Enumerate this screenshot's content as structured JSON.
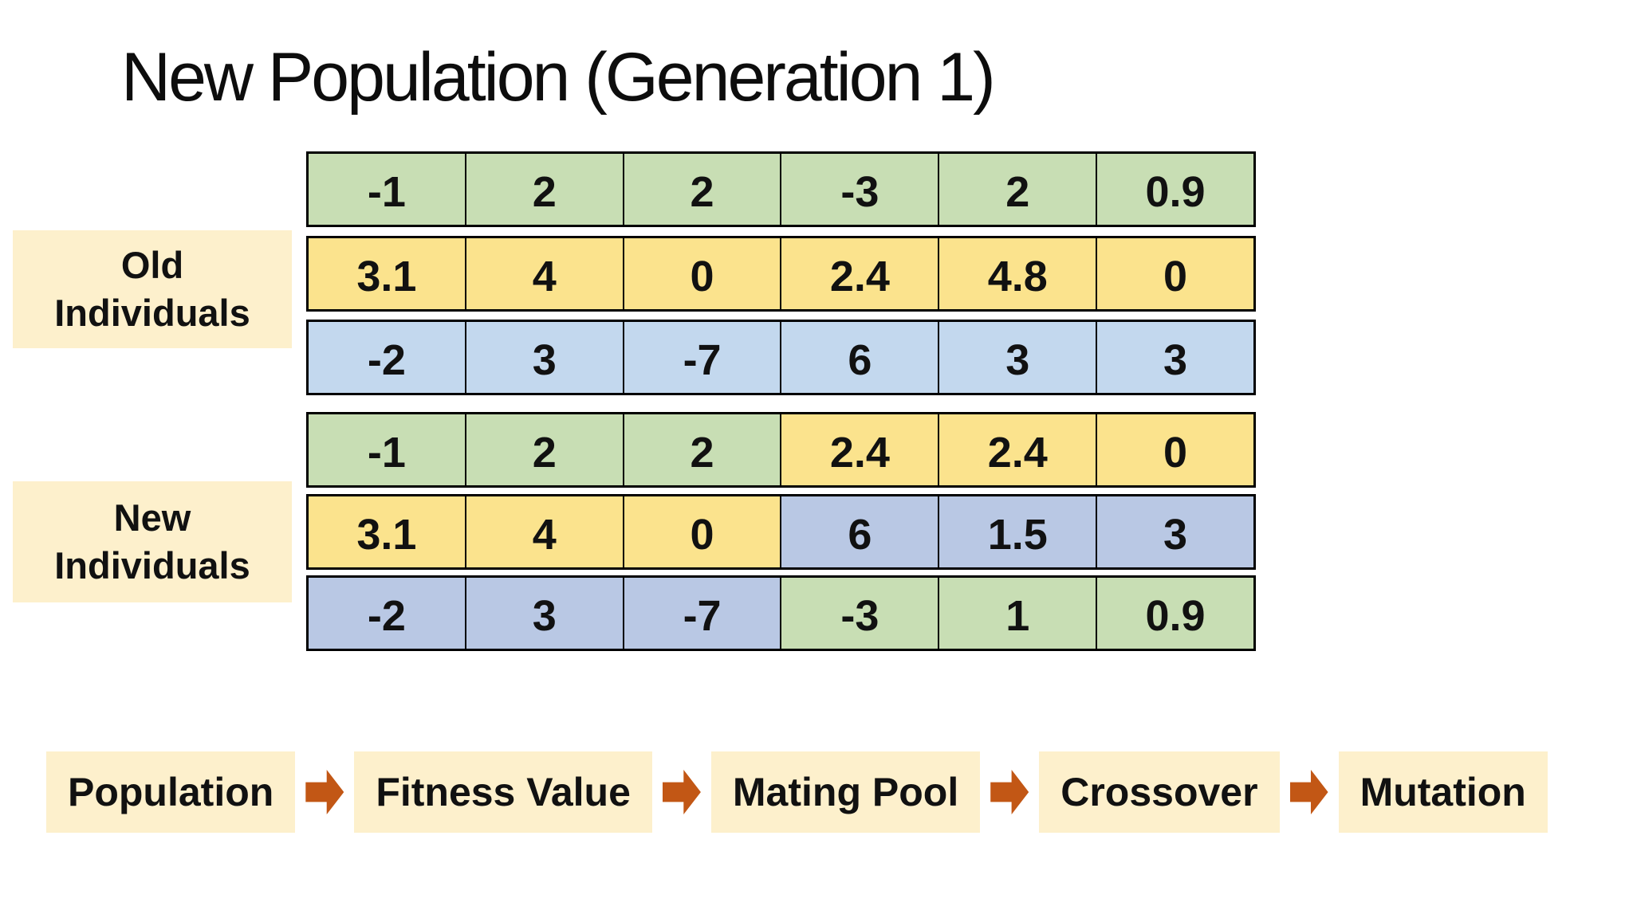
{
  "title": "New Population (Generation 1)",
  "old_section": {
    "label_lines": [
      "Old",
      "Individuals"
    ]
  },
  "new_section": {
    "label_lines": [
      "New",
      "Individuals"
    ]
  },
  "tables": {
    "old": {
      "rows": [
        {
          "cells": [
            {
              "value": "-1",
              "color": "green"
            },
            {
              "value": "2",
              "color": "green"
            },
            {
              "value": "2",
              "color": "green"
            },
            {
              "value": "-3",
              "color": "green"
            },
            {
              "value": "2",
              "color": "green"
            },
            {
              "value": "0.9",
              "color": "green"
            }
          ]
        },
        {
          "cells": [
            {
              "value": "3.1",
              "color": "yellow"
            },
            {
              "value": "4",
              "color": "yellow"
            },
            {
              "value": "0",
              "color": "yellow"
            },
            {
              "value": "2.4",
              "color": "yellow"
            },
            {
              "value": "4.8",
              "color": "yellow"
            },
            {
              "value": "0",
              "color": "yellow"
            }
          ]
        },
        {
          "cells": [
            {
              "value": "-2",
              "color": "blue_old"
            },
            {
              "value": "3",
              "color": "blue_old"
            },
            {
              "value": "-7",
              "color": "blue_old"
            },
            {
              "value": "6",
              "color": "blue_old"
            },
            {
              "value": "3",
              "color": "blue_old"
            },
            {
              "value": "3",
              "color": "blue_old"
            }
          ]
        }
      ]
    },
    "new": {
      "rows": [
        {
          "cells": [
            {
              "value": "-1",
              "color": "green"
            },
            {
              "value": "2",
              "color": "green"
            },
            {
              "value": "2",
              "color": "green"
            },
            {
              "value": "2.4",
              "color": "yellow"
            },
            {
              "value": "2.4",
              "color": "yellow"
            },
            {
              "value": "0",
              "color": "yellow"
            }
          ]
        },
        {
          "cells": [
            {
              "value": "3.1",
              "color": "yellow"
            },
            {
              "value": "4",
              "color": "yellow"
            },
            {
              "value": "0",
              "color": "yellow"
            },
            {
              "value": "6",
              "color": "blue_new"
            },
            {
              "value": "1.5",
              "color": "blue_new"
            },
            {
              "value": "3",
              "color": "blue_new"
            }
          ]
        },
        {
          "cells": [
            {
              "value": "-2",
              "color": "blue_new"
            },
            {
              "value": "3",
              "color": "blue_new"
            },
            {
              "value": "-7",
              "color": "blue_new"
            },
            {
              "value": "-3",
              "color": "green"
            },
            {
              "value": "1",
              "color": "green"
            },
            {
              "value": "0.9",
              "color": "green"
            }
          ]
        }
      ]
    }
  },
  "flow": {
    "steps": [
      "Population",
      "Fitness Value",
      "Mating Pool",
      "Crossover",
      "Mutation"
    ]
  },
  "colors": {
    "green": "#c8deb4",
    "yellow": "#fbe38d",
    "blue_old": "#c3d8ee",
    "blue_new": "#b9c8e4",
    "label_bg": "#fdf0cc",
    "arrow": "#c25715",
    "text": "#111111",
    "background": "#ffffff"
  }
}
